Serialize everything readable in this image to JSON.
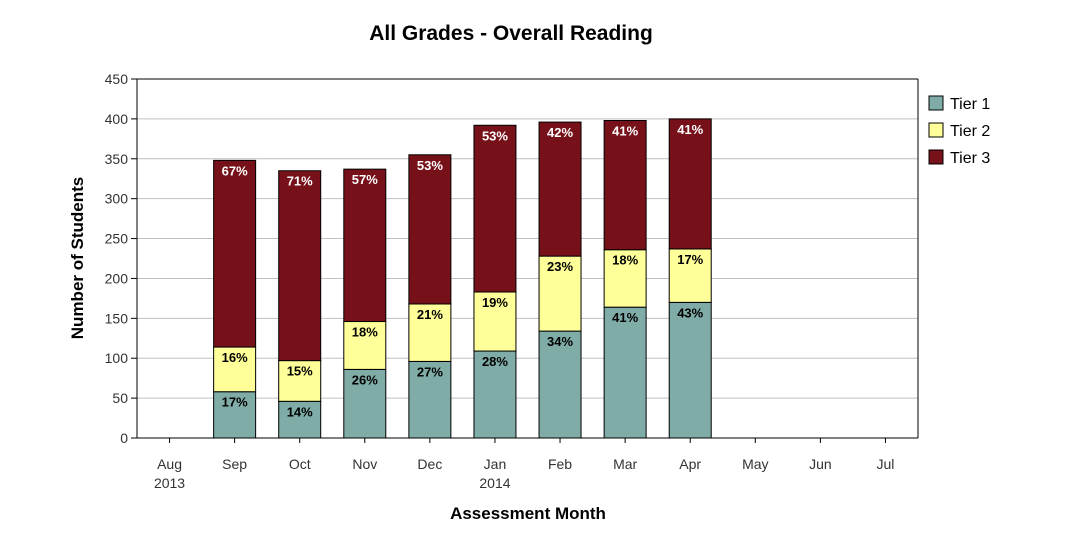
{
  "chart_data": {
    "type": "bar",
    "stacked": true,
    "title": "All Grades - Overall Reading",
    "xlabel": "Assessment Month",
    "ylabel": "Number of Students",
    "ylim": [
      0,
      450
    ],
    "yticks": [
      0,
      50,
      100,
      150,
      200,
      250,
      300,
      350,
      400,
      450
    ],
    "grid": true,
    "legend_position": "top-right",
    "categories": [
      "Aug",
      "Sep",
      "Oct",
      "Nov",
      "Dec",
      "Jan",
      "Feb",
      "Mar",
      "Apr",
      "May",
      "Jun",
      "Jul"
    ],
    "category_sublabels": [
      "2013",
      "",
      "",
      "",
      "",
      "2014",
      "",
      "",
      "",
      "",
      "",
      ""
    ],
    "series": [
      {
        "name": "Tier 1",
        "color": "#7faca6",
        "label_color": "#000000",
        "values": [
          null,
          58,
          46,
          86,
          96,
          109,
          134,
          164,
          170,
          null,
          null,
          null
        ],
        "labels": [
          "",
          "17%",
          "14%",
          "26%",
          "27%",
          "28%",
          "34%",
          "41%",
          "43%",
          "",
          "",
          ""
        ]
      },
      {
        "name": "Tier 2",
        "color": "#ffff99",
        "label_color": "#000000",
        "values": [
          null,
          56,
          51,
          60,
          72,
          74,
          94,
          72,
          67,
          null,
          null,
          null
        ],
        "labels": [
          "",
          "16%",
          "15%",
          "18%",
          "21%",
          "19%",
          "23%",
          "18%",
          "17%",
          "",
          "",
          ""
        ]
      },
      {
        "name": "Tier 3",
        "color": "#76111a",
        "label_color": "#ffffff",
        "values": [
          null,
          234,
          238,
          191,
          187,
          209,
          168,
          162,
          163,
          null,
          null,
          null
        ],
        "labels": [
          "",
          "67%",
          "71%",
          "57%",
          "53%",
          "53%",
          "42%",
          "41%",
          "41%",
          "",
          "",
          ""
        ]
      }
    ]
  }
}
